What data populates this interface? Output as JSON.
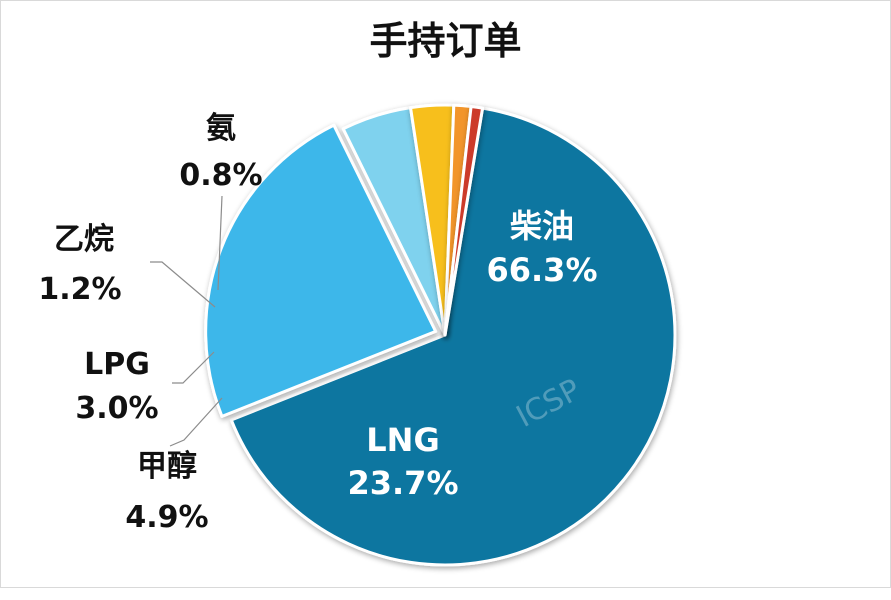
{
  "chart_data": {
    "type": "pie",
    "title": "手持订单",
    "watermark": "ICSP",
    "slices": [
      {
        "name": "柴油",
        "value": 66.3,
        "label": "66.3%",
        "color": "#0f76a0",
        "label_color": "#ffffff",
        "label_pos": "inside",
        "exploded": false
      },
      {
        "name": "LNG",
        "value": 23.7,
        "label": "23.7%",
        "color": "#3db7ea",
        "label_color": "#ffffff",
        "label_pos": "inside",
        "exploded": true
      },
      {
        "name": "甲醇",
        "value": 4.9,
        "label": "4.9%",
        "color": "#7fd2ee",
        "label_color": "#111111",
        "label_pos": "outside",
        "exploded": false
      },
      {
        "name": "LPG",
        "value": 3.0,
        "label": "3.0%",
        "color": "#f7bf1b",
        "label_color": "#111111",
        "label_pos": "outside",
        "exploded": false
      },
      {
        "name": "乙烷",
        "value": 1.2,
        "label": "1.2%",
        "color": "#f2952a",
        "label_color": "#111111",
        "label_pos": "outside",
        "exploded": false
      },
      {
        "name": "氨",
        "value": 0.8,
        "label": "0.8%",
        "color": "#cc3a2b",
        "label_color": "#111111",
        "label_pos": "outside",
        "exploded": false
      }
    ]
  }
}
